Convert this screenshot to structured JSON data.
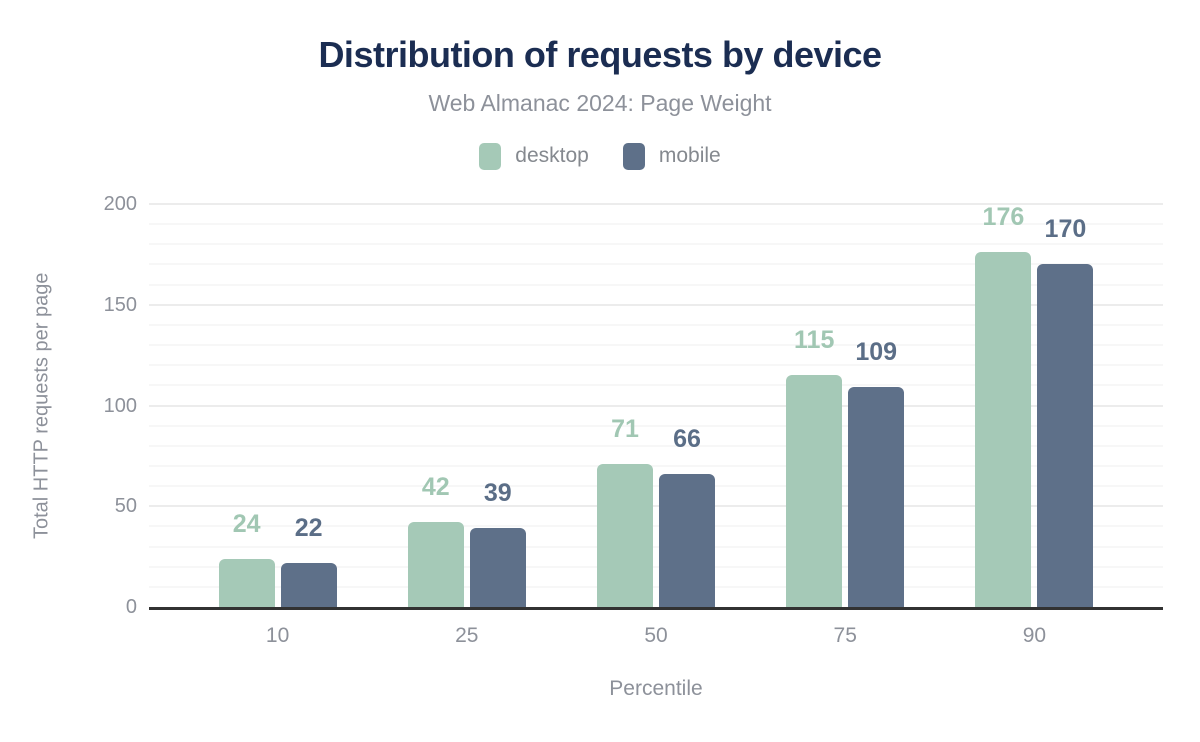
{
  "chart_data": {
    "type": "bar",
    "title": "Distribution of requests by device",
    "subtitle": "Web Almanac 2024: Page Weight",
    "xlabel": "Percentile",
    "ylabel": "Total HTTP requests per page",
    "categories": [
      "10",
      "25",
      "50",
      "75",
      "90"
    ],
    "series": [
      {
        "name": "desktop",
        "color": "#a5c9b7",
        "label_color": "#a1c7b3",
        "values": [
          24,
          42,
          71,
          115,
          176
        ]
      },
      {
        "name": "mobile",
        "color": "#5e7089",
        "label_color": "#5b6e87",
        "values": [
          22,
          39,
          66,
          109,
          170
        ]
      }
    ],
    "ylim": [
      0,
      200
    ],
    "y_major_ticks": [
      0,
      50,
      100,
      150,
      200
    ],
    "y_minor_step": 10,
    "grid": "on",
    "legend_position": "top"
  },
  "colors": {
    "title": "#1b2d52",
    "muted_text": "#8d919a",
    "legend_text": "#85898f",
    "axis_line": "#323232",
    "grid_major": "#ececec",
    "grid_minor": "#f7f7f7"
  }
}
